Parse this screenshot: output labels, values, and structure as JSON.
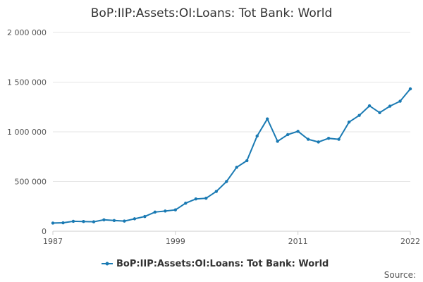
{
  "colors": {
    "series": "#1a7ab3",
    "grid": "#e6e6e6",
    "axis": "#cccccc"
  },
  "chart_data": {
    "type": "line",
    "title": "BoP:IIP:Assets:OI:Loans: Tot Bank: World",
    "xlabel": "",
    "ylabel": "",
    "x": [
      1987,
      1988,
      1989,
      1990,
      1991,
      1992,
      1993,
      1994,
      1995,
      1996,
      1997,
      1998,
      1999,
      2000,
      2001,
      2002,
      2003,
      2004,
      2005,
      2006,
      2007,
      2008,
      2009,
      2010,
      2011,
      2012,
      2013,
      2014,
      2015,
      2016,
      2017,
      2018,
      2019,
      2020,
      2021,
      2022
    ],
    "series": [
      {
        "name": "BoP:IIP:Assets:OI:Loans: Tot Bank: World",
        "values": [
          82000,
          85000,
          100000,
          98000,
          95000,
          115000,
          108000,
          102000,
          125000,
          148000,
          193000,
          203000,
          215000,
          282000,
          325000,
          332000,
          400000,
          500000,
          643000,
          710000,
          958000,
          1130000,
          905000,
          972000,
          1005000,
          925000,
          898000,
          935000,
          925000,
          1098000,
          1165000,
          1262000,
          1193000,
          1258000,
          1308000,
          1432000
        ]
      }
    ],
    "xlim": [
      1987,
      2022
    ],
    "ylim": [
      0,
      2000000
    ],
    "x_ticks": [
      "1987",
      "1999",
      "2011",
      "2022"
    ],
    "y_ticks": [
      "0",
      "500 000",
      "1 000 000",
      "1 500 000",
      "2 000 000"
    ],
    "grid": true,
    "legend": "bottom-center",
    "source_label": "Source:"
  }
}
